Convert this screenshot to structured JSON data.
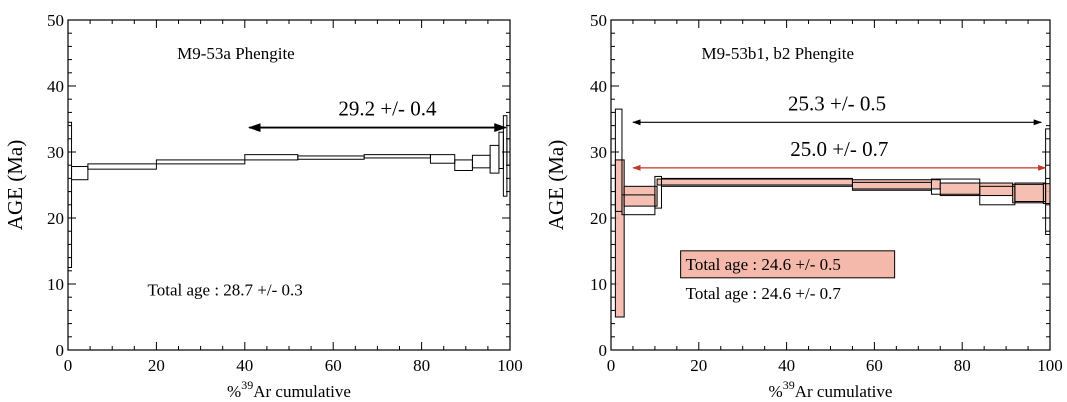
{
  "chart_data": [
    {
      "type": "step",
      "sample_label": "M9-53a Phengite",
      "ylabel": "AGE (Ma)",
      "xlabel": "% Ar cumulative",
      "xlabel_parts": {
        "prefix": "%",
        "superscript": "39",
        "suffix": "Ar cumulative"
      },
      "xlim": [
        0,
        100
      ],
      "ylim": [
        0,
        50
      ],
      "xticks": [
        0,
        20,
        40,
        60,
        80,
        100
      ],
      "yticks": [
        0,
        10,
        20,
        30,
        40,
        50
      ],
      "xtick_labels": [
        "0",
        "20",
        "40",
        "60",
        "80",
        "100"
      ],
      "ytick_labels": [
        "0",
        "10",
        "20",
        "30",
        "40",
        "50"
      ],
      "colors": {
        "line": "#000000",
        "fill": "#f4b9ab"
      },
      "series": [
        {
          "fill": false,
          "steps": [
            {
              "x0": 0,
              "x1": 0.8,
              "lo": 12.5,
              "hi": 34.5
            },
            {
              "x0": 0.8,
              "x1": 4.5,
              "lo": 25.8,
              "hi": 27.8
            },
            {
              "x0": 4.5,
              "x1": 20,
              "lo": 27.4,
              "hi": 28.2
            },
            {
              "x0": 20,
              "x1": 40,
              "lo": 28.2,
              "hi": 28.8
            },
            {
              "x0": 40,
              "x1": 52,
              "lo": 28.8,
              "hi": 29.6
            },
            {
              "x0": 52,
              "x1": 67,
              "lo": 28.9,
              "hi": 29.4
            },
            {
              "x0": 67,
              "x1": 82,
              "lo": 29.1,
              "hi": 29.6
            },
            {
              "x0": 82,
              "x1": 87.5,
              "lo": 28.3,
              "hi": 29.6
            },
            {
              "x0": 87.5,
              "x1": 91.5,
              "lo": 27.2,
              "hi": 28.8
            },
            {
              "x0": 91.5,
              "x1": 95.5,
              "lo": 27.6,
              "hi": 29.5
            },
            {
              "x0": 95.5,
              "x1": 97.5,
              "lo": 26.8,
              "hi": 31.0
            },
            {
              "x0": 97.5,
              "x1": 98.5,
              "lo": 27.5,
              "hi": 33.0
            },
            {
              "x0": 98.5,
              "x1": 99.3,
              "lo": 23.3,
              "hi": 35.5
            },
            {
              "x0": 99.3,
              "x1": 100,
              "lo": 28.0,
              "hi": 32.0
            }
          ]
        }
      ],
      "plateaus": [
        {
          "label": "29.2 +/- 0.4",
          "x0": 41,
          "x1": 99,
          "y": 33.7,
          "arrow_color": "#000000"
        }
      ],
      "total_ages": [
        {
          "label": "Total age : 28.7 +/- 0.3",
          "x": 18,
          "y": 8.4,
          "box": false
        }
      ]
    },
    {
      "type": "step",
      "sample_label": "M9-53b1, b2 Phengite",
      "ylabel": "AGE (Ma)",
      "xlabel": "% Ar cumulative",
      "xlabel_parts": {
        "prefix": "%",
        "superscript": "39",
        "suffix": "Ar cumulative"
      },
      "xlim": [
        0,
        100
      ],
      "ylim": [
        0,
        50
      ],
      "xticks": [
        0,
        20,
        40,
        60,
        80,
        100
      ],
      "yticks": [
        0,
        10,
        20,
        30,
        40,
        50
      ],
      "xtick_labels": [
        "0",
        "20",
        "40",
        "60",
        "80",
        "100"
      ],
      "ytick_labels": [
        "0",
        "10",
        "20",
        "30",
        "40",
        "50"
      ],
      "colors": {
        "line": "#000000",
        "fill": "#f4b9ab",
        "arrow_red": "#c0392b"
      },
      "series": [
        {
          "name": "b1",
          "fill": false,
          "steps": [
            {
              "x0": 1.0,
              "x1": 2.5,
              "lo": 21.0,
              "hi": 36.5
            },
            {
              "x0": 2.5,
              "x1": 10,
              "lo": 20.5,
              "hi": 23.5
            },
            {
              "x0": 10,
              "x1": 11.5,
              "lo": 21.5,
              "hi": 26.3
            },
            {
              "x0": 11.5,
              "x1": 55,
              "lo": 24.8,
              "hi": 26.0
            },
            {
              "x0": 55,
              "x1": 73,
              "lo": 24.2,
              "hi": 25.4
            },
            {
              "x0": 73,
              "x1": 84,
              "lo": 23.6,
              "hi": 25.9
            },
            {
              "x0": 84,
              "x1": 92,
              "lo": 22.0,
              "hi": 24.8
            },
            {
              "x0": 92,
              "x1": 99,
              "lo": 22.5,
              "hi": 25.3
            },
            {
              "x0": 99,
              "x1": 100,
              "lo": 17.5,
              "hi": 33.5
            }
          ]
        },
        {
          "name": "b2",
          "fill": true,
          "steps": [
            {
              "x0": 1.0,
              "x1": 3.0,
              "lo": 5.0,
              "hi": 28.8
            },
            {
              "x0": 3.0,
              "x1": 10.5,
              "lo": 21.8,
              "hi": 24.8
            },
            {
              "x0": 10.5,
              "x1": 55,
              "lo": 25.0,
              "hi": 25.9
            },
            {
              "x0": 55,
              "x1": 75,
              "lo": 24.4,
              "hi": 25.8
            },
            {
              "x0": 75,
              "x1": 91.5,
              "lo": 23.4,
              "hi": 25.3
            },
            {
              "x0": 91.5,
              "x1": 98.5,
              "lo": 22.3,
              "hi": 25.1
            },
            {
              "x0": 98.5,
              "x1": 100,
              "lo": 22.2,
              "hi": 25.2
            }
          ]
        }
      ],
      "plateaus": [
        {
          "label": "25.3 +/- 0.5",
          "x0": 5,
          "x1": 98,
          "y": 34.5,
          "arrow_color": "#000000"
        },
        {
          "label": "25.0 +/- 0.7",
          "x0": 5,
          "x1": 99,
          "y": 27.6,
          "arrow_color": "#c0392b"
        }
      ],
      "total_ages": [
        {
          "label": "Total age : 24.6 +/- 0.5",
          "x": 17,
          "y": 12.3,
          "box": true
        },
        {
          "label": "Total age : 24.6 +/- 0.7",
          "x": 17,
          "y": 7.9,
          "box": false
        }
      ]
    }
  ]
}
